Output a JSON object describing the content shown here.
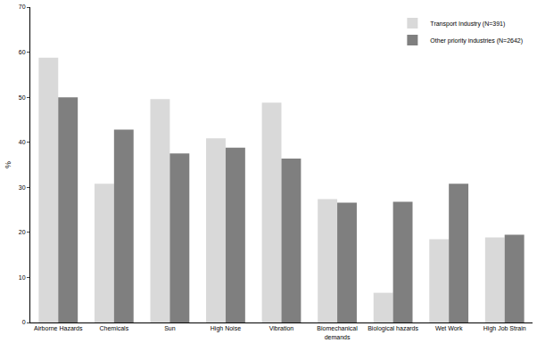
{
  "chart_data": {
    "type": "bar",
    "y_label": "%",
    "categories": [
      "Airborne Hazards",
      "Chemicals",
      "Sun",
      "High Noise",
      "Vibration",
      "Biomechanical demands",
      "Biological hazards",
      "Wet Work",
      "High Job Strain"
    ],
    "series": [
      {
        "name": "Transport Industry (N=391)",
        "color": "#d9d9d9",
        "values": [
          58.8,
          30.8,
          49.6,
          40.9,
          48.8,
          27.4,
          6.6,
          18.5,
          18.9
        ]
      },
      {
        "name": "Other priority industries (N=2642)",
        "color": "#7f7f7f",
        "values": [
          50.0,
          42.8,
          37.5,
          38.8,
          36.4,
          26.6,
          26.8,
          30.8,
          19.5
        ]
      }
    ],
    "ylim": [
      0,
      70
    ],
    "yticks": [
      0,
      10,
      20,
      30,
      40,
      50,
      60,
      70
    ],
    "grid": false,
    "legend": "top-right"
  }
}
